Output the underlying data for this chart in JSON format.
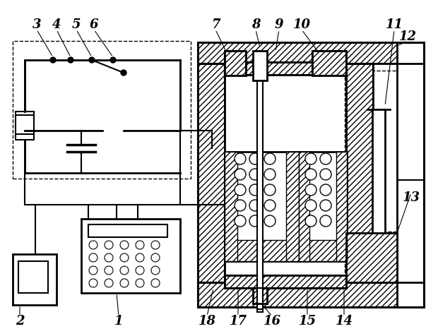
{
  "fig_width": 6.2,
  "fig_height": 4.76,
  "dpi": 100,
  "bg_color": "#ffffff",
  "line_color": "#000000"
}
